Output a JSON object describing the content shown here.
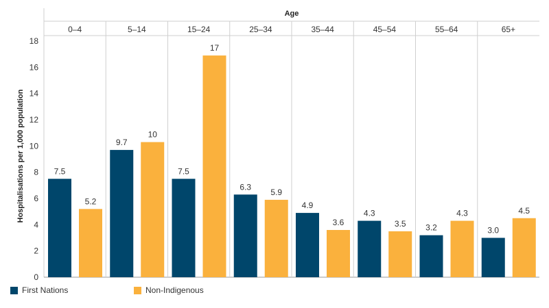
{
  "chart_data": {
    "type": "bar",
    "title": "",
    "xlabel": "Age",
    "ylabel": "Hospitalisations per 1,000 population",
    "ylim": [
      0,
      18
    ],
    "yticks": [
      0,
      2,
      4,
      6,
      8,
      10,
      12,
      14,
      16,
      18
    ],
    "categories": [
      "0–4",
      "5–14",
      "15–24",
      "25–34",
      "35–44",
      "45–54",
      "55–64",
      "65+"
    ],
    "series": [
      {
        "name": "First Nations",
        "color": "#00466b",
        "values": [
          7.5,
          9.7,
          7.5,
          6.3,
          4.9,
          4.3,
          3.2,
          3.0
        ],
        "labels": [
          "7.5",
          "9.7",
          "7.5",
          "6.3",
          "4.9",
          "4.3",
          "3.2",
          "3.0"
        ]
      },
      {
        "name": "Non-Indigenous",
        "color": "#fab13d",
        "values": [
          5.2,
          10.3,
          16.9,
          5.9,
          3.6,
          3.5,
          4.3,
          4.5
        ],
        "labels": [
          "5.2",
          "10",
          "17",
          "5.9",
          "3.6",
          "3.5",
          "4.3",
          "4.5"
        ]
      }
    ],
    "grid": false,
    "legend_position": "bottom-left"
  }
}
